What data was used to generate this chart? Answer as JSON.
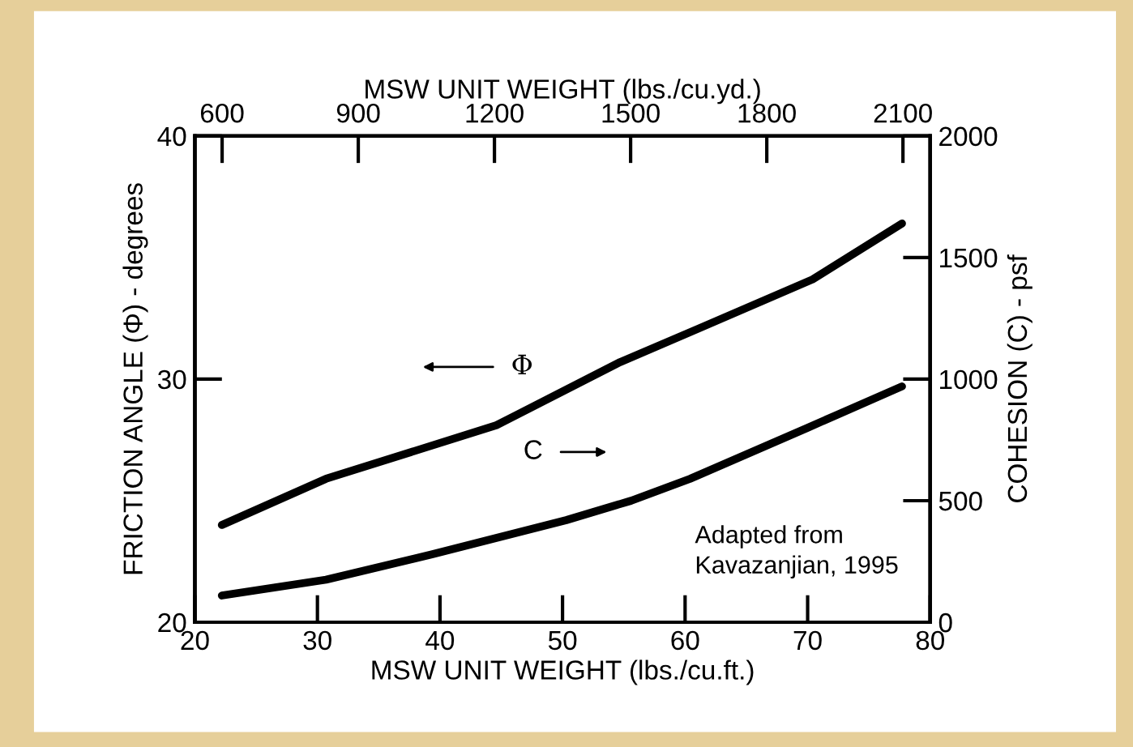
{
  "chart_data": {
    "type": "line",
    "xlabel": "MSW UNIT WEIGHT (lbs./cu.ft.)",
    "x2label": "MSW UNIT WEIGHT (lbs./cu.yd.)",
    "ylabel": "FRICTION ANGLE (Φ) - degrees",
    "y2label": "COHESION (C) - psf",
    "xlim": [
      20,
      80
    ],
    "xticks": [
      20,
      30,
      40,
      50,
      60,
      70,
      80
    ],
    "x2lim": [
      540,
      2160
    ],
    "x2ticks": [
      600,
      900,
      1200,
      1500,
      1800,
      2100
    ],
    "ylim": [
      20,
      40
    ],
    "yticks": [
      20,
      30,
      40
    ],
    "y2lim": [
      0,
      2000
    ],
    "y2ticks": [
      0,
      500,
      1000,
      1500,
      2000
    ],
    "series": [
      {
        "color": "#000000",
        "x": [
          22.2,
          30.7,
          44.6,
          54.7,
          61.2,
          70.4,
          77.7
        ],
        "values": [
          24.0,
          25.9,
          28.1,
          30.7,
          32.1,
          34.1,
          36.4
        ]
      },
      {
        "color": "#000000",
        "axis": "y2",
        "x": [
          22.2,
          30.7,
          39.4,
          50.3,
          55.6,
          60.4,
          70.0,
          77.7
        ],
        "values": [
          110,
          175,
          280,
          420,
          500,
          590,
          800,
          970
        ]
      }
    ],
    "annotations": [
      "Φ",
      "C",
      "Adapted from\nKavazanjian, 1995"
    ],
    "grid": false,
    "legend": false,
    "marker": "none",
    "line_style": "solid"
  }
}
